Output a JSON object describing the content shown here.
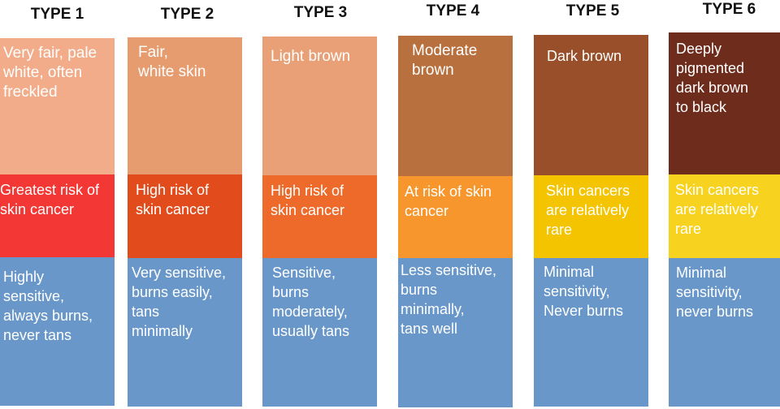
{
  "columns": [
    {
      "type_label": "TYPE 1",
      "skin_desc": "Very fair, pale\nwhite, often\nfreckled",
      "skin_color": "#F3AC89",
      "risk_text": "Greatest risk of\nskin cancer",
      "risk_color": "#F23734",
      "sensitivity_text": "Highly\nsensitive,\nalways burns,\nnever tans",
      "sensitivity_color": "#6A97C9"
    },
    {
      "type_label": "TYPE 2",
      "skin_desc": "Fair,\nwhite skin",
      "skin_color": "#E79C70",
      "risk_text": "High risk of\nskin cancer",
      "risk_color": "#E24C1D",
      "sensitivity_text": "Very sensitive,\nburns easily,\ntans\nminimally",
      "sensitivity_color": "#6A97C9"
    },
    {
      "type_label": "TYPE 3",
      "skin_desc": "Light brown",
      "skin_color": "#E9A076",
      "risk_text": "High risk of\nskin cancer",
      "risk_color": "#EE6A2A",
      "sensitivity_text": "Sensitive,\nburns\nmoderately,\nusually tans",
      "sensitivity_color": "#6A97C9"
    },
    {
      "type_label": "TYPE 4",
      "skin_desc": "Moderate\nbrown",
      "skin_color": "#B8703E",
      "risk_text": "At risk of skin\ncancer",
      "risk_color": "#F7962C",
      "sensitivity_text": "Less sensitive,\nburns\nminimally,\ntans well",
      "sensitivity_color": "#6A97C9"
    },
    {
      "type_label": "TYPE 5",
      "skin_desc": "Dark brown",
      "skin_color": "#984F2A",
      "risk_text": "Skin cancers\nare relatively\nrare",
      "risk_color": "#F4C400",
      "sensitivity_text": "Minimal\nsensitivity,\nNever burns",
      "sensitivity_color": "#6A97C9"
    },
    {
      "type_label": "TYPE 6",
      "skin_desc": "Deeply\npigmented\ndark brown\nto black",
      "skin_color": "#6E2C1C",
      "risk_text": "Skin cancers\nare relatively\nrare",
      "risk_color": "#F7D21E",
      "sensitivity_text": "Minimal\nsensitivity,\nnever burns",
      "sensitivity_color": "#6A97C9"
    }
  ]
}
